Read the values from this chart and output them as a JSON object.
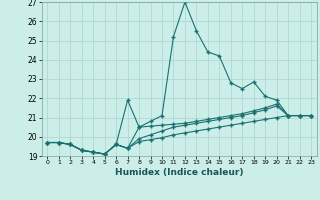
{
  "title": "",
  "xlabel": "Humidex (Indice chaleur)",
  "ylabel": "",
  "xlim": [
    -0.5,
    23.5
  ],
  "ylim": [
    19,
    27
  ],
  "xticks": [
    0,
    1,
    2,
    3,
    4,
    5,
    6,
    7,
    8,
    9,
    10,
    11,
    12,
    13,
    14,
    15,
    16,
    17,
    18,
    19,
    20,
    21,
    22,
    23
  ],
  "yticks": [
    19,
    20,
    21,
    22,
    23,
    24,
    25,
    26,
    27
  ],
  "background_color": "#cceee8",
  "grid_color": "#aad4ce",
  "line_color": "#1a7070",
  "lines": [
    {
      "x": [
        0,
        1,
        2,
        3,
        4,
        5,
        6,
        7,
        8,
        9,
        10,
        11,
        12,
        13,
        14,
        15,
        16,
        17,
        18,
        19,
        20,
        21,
        22,
        23
      ],
      "y": [
        19.7,
        19.7,
        19.6,
        19.3,
        19.2,
        19.1,
        19.6,
        19.4,
        20.5,
        20.8,
        21.1,
        25.2,
        27.0,
        25.5,
        24.4,
        24.2,
        22.8,
        22.5,
        22.85,
        22.1,
        21.9,
        21.1,
        21.1,
        21.1
      ]
    },
    {
      "x": [
        0,
        1,
        2,
        3,
        4,
        5,
        6,
        7,
        8,
        9,
        10,
        11,
        12,
        13,
        14,
        15,
        16,
        17,
        18,
        19,
        20,
        21,
        22,
        23
      ],
      "y": [
        19.7,
        19.7,
        19.6,
        19.3,
        19.2,
        19.1,
        19.6,
        21.9,
        20.5,
        20.55,
        20.6,
        20.65,
        20.7,
        20.8,
        20.9,
        21.0,
        21.1,
        21.2,
        21.35,
        21.5,
        21.7,
        21.1,
        21.1,
        21.1
      ]
    },
    {
      "x": [
        0,
        1,
        2,
        3,
        4,
        5,
        6,
        7,
        8,
        9,
        10,
        11,
        12,
        13,
        14,
        15,
        16,
        17,
        18,
        19,
        20,
        21,
        22,
        23
      ],
      "y": [
        19.7,
        19.7,
        19.6,
        19.3,
        19.2,
        19.1,
        19.6,
        19.4,
        19.9,
        20.1,
        20.3,
        20.5,
        20.6,
        20.7,
        20.8,
        20.9,
        21.0,
        21.1,
        21.25,
        21.4,
        21.6,
        21.1,
        21.1,
        21.1
      ]
    },
    {
      "x": [
        0,
        1,
        2,
        3,
        4,
        5,
        6,
        7,
        8,
        9,
        10,
        11,
        12,
        13,
        14,
        15,
        16,
        17,
        18,
        19,
        20,
        21,
        22,
        23
      ],
      "y": [
        19.7,
        19.7,
        19.6,
        19.3,
        19.2,
        19.1,
        19.6,
        19.4,
        19.75,
        19.85,
        19.95,
        20.1,
        20.2,
        20.3,
        20.4,
        20.5,
        20.6,
        20.7,
        20.8,
        20.9,
        21.0,
        21.1,
        21.1,
        21.1
      ]
    }
  ]
}
